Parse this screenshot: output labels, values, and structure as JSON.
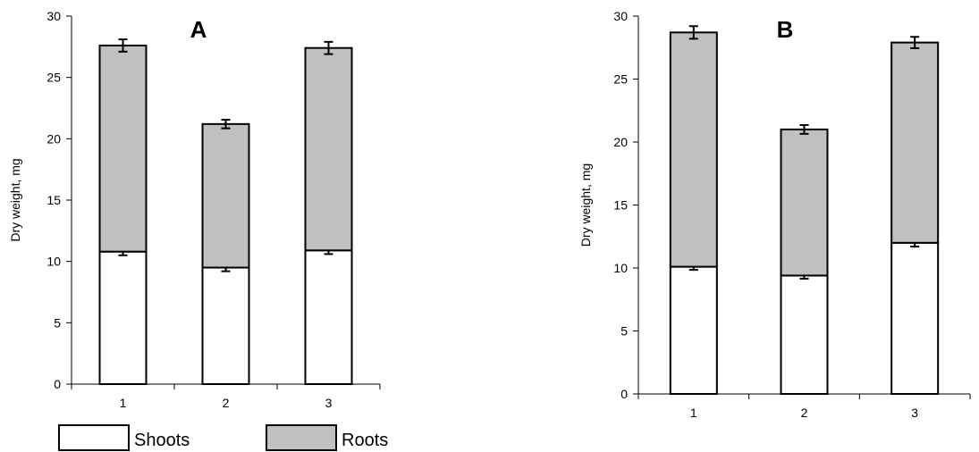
{
  "chart_data": [
    {
      "type": "bar",
      "stacked": true,
      "title": "A",
      "ylabel": "Dry weight, mg",
      "xlabel": "",
      "categories": [
        "1",
        "2",
        "3"
      ],
      "ylim": [
        0,
        30
      ],
      "yticks": [
        0,
        5,
        10,
        15,
        20,
        25,
        30
      ],
      "grid": false,
      "series": [
        {
          "name": "Shoots",
          "color": "#ffffff",
          "values": [
            10.8,
            9.5,
            10.9
          ],
          "errors": [
            0.3,
            0.3,
            0.3
          ]
        },
        {
          "name": "Roots",
          "color": "#c0c0c0",
          "values": [
            16.8,
            11.7,
            16.5
          ],
          "errors": [
            0.5,
            0.35,
            0.5
          ]
        }
      ]
    },
    {
      "type": "bar",
      "stacked": true,
      "title": "B",
      "ylabel": "Dry weight, mg",
      "xlabel": "",
      "categories": [
        "1",
        "2",
        "3"
      ],
      "ylim": [
        0,
        30
      ],
      "yticks": [
        0,
        5,
        10,
        15,
        20,
        25,
        30
      ],
      "grid": false,
      "series": [
        {
          "name": "Shoots",
          "color": "#ffffff",
          "values": [
            10.1,
            9.4,
            12.0
          ],
          "errors": [
            0.25,
            0.25,
            0.3
          ]
        },
        {
          "name": "Roots",
          "color": "#c0c0c0",
          "values": [
            18.6,
            11.6,
            15.9
          ],
          "errors": [
            0.5,
            0.35,
            0.45
          ]
        }
      ]
    }
  ],
  "legend": {
    "placement": "bottom-left",
    "items": [
      {
        "label": "Shoots",
        "color": "#ffffff"
      },
      {
        "label": "Roots",
        "color": "#c0c0c0"
      }
    ]
  }
}
